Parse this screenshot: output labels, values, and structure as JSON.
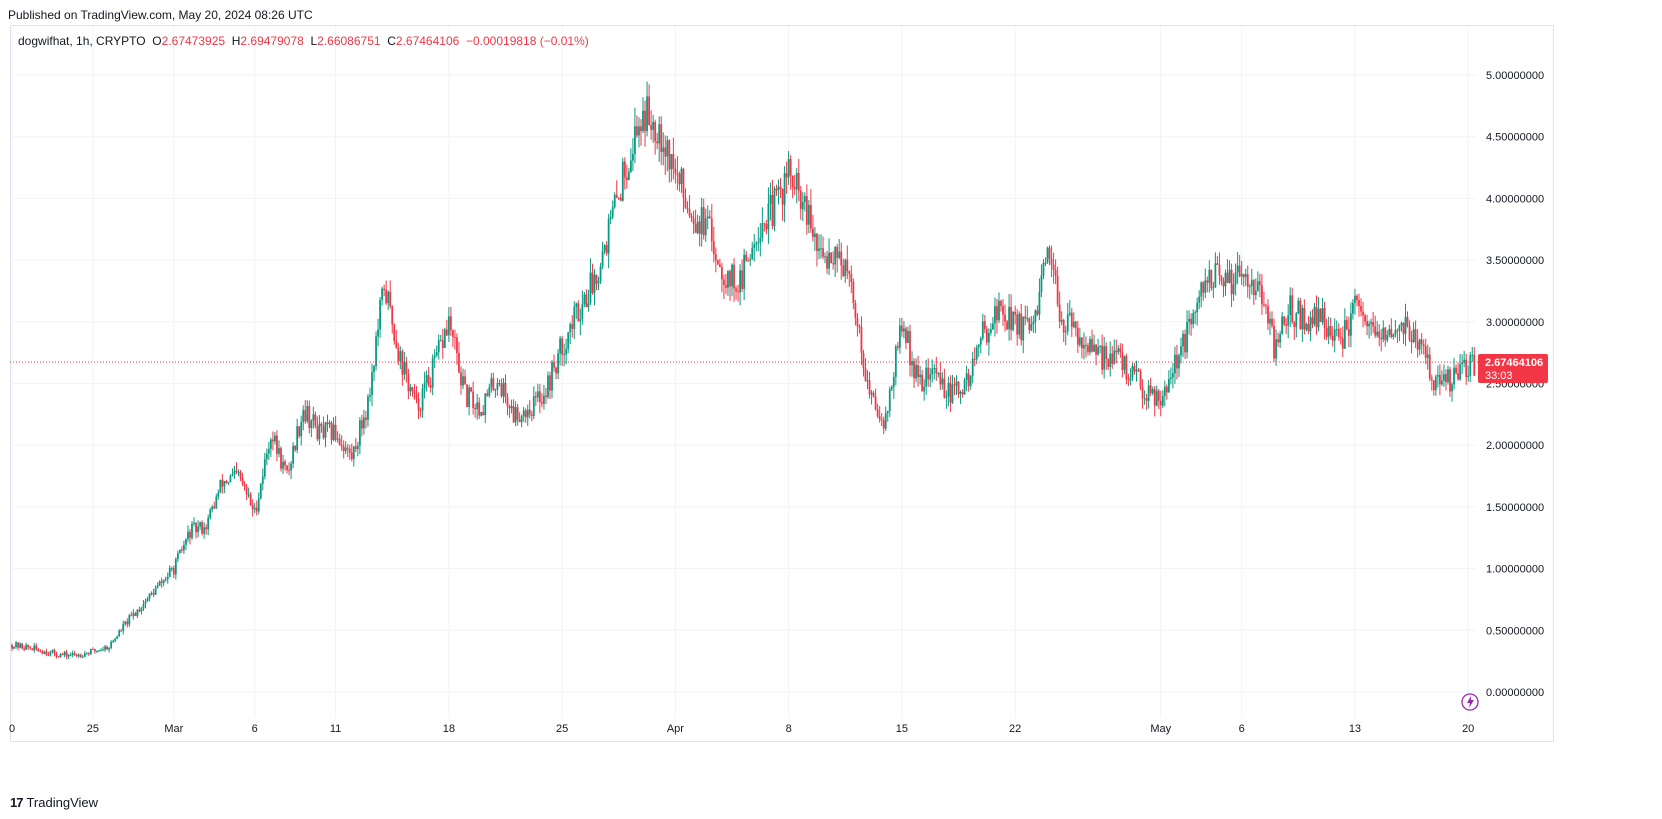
{
  "caption": "Published on TradingView.com, May 20, 2024 08:26 UTC",
  "symbol": {
    "name": "dogwifhat, 1h, CRYPTO",
    "o_label": "O",
    "o_value": "2.67473925",
    "h_label": "H",
    "h_value": "2.69479078",
    "l_label": "L",
    "l_value": "2.66086751",
    "c_label": "C",
    "c_value": "2.67464106",
    "change": "−0.00019818 (−0.01%)"
  },
  "price_tag": {
    "value": "2.67464106",
    "countdown": "33:03"
  },
  "brand": {
    "logo": "17",
    "name": "TradingView"
  },
  "colors": {
    "up": "#089981",
    "down": "#f23645",
    "grid": "#f0f3fa",
    "axis_text": "#131722"
  },
  "chart_data": {
    "type": "candlestick",
    "title": "dogwifhat, 1h, CRYPTO",
    "xlabel": "",
    "ylabel": "",
    "ylim": [
      -0.05,
      5.3
    ],
    "x_tick_labels": [
      "0",
      "25",
      "Mar",
      "6",
      "11",
      "18",
      "25",
      "Apr",
      "8",
      "15",
      "22",
      "May",
      "6",
      "13",
      "20"
    ],
    "x_tick_days": [
      0,
      5,
      10,
      15,
      20,
      27,
      34,
      41,
      48,
      55,
      62,
      71,
      76,
      83,
      90
    ],
    "y_tick_labels": [
      "0.00000000",
      "0.50000000",
      "1.00000000",
      "1.50000000",
      "2.00000000",
      "2.50000000",
      "3.00000000",
      "3.50000000",
      "4.00000000",
      "4.50000000",
      "5.00000000"
    ],
    "y_tick_values": [
      0,
      0.5,
      1.0,
      1.5,
      2.0,
      2.5,
      3.0,
      3.5,
      4.0,
      4.5,
      5.0
    ],
    "last_price": 2.67464106,
    "close_path_days": [
      0,
      1,
      2,
      3,
      4,
      5,
      6,
      7,
      8,
      9,
      10,
      11,
      12,
      13,
      14,
      15,
      16,
      17,
      18,
      19,
      20,
      21,
      22,
      23,
      24,
      25,
      26,
      27,
      28,
      29,
      30,
      31,
      32,
      33,
      34,
      35,
      36,
      37,
      38,
      39,
      40,
      41,
      42,
      43,
      44,
      45,
      46,
      47,
      48,
      49,
      50,
      51,
      52,
      53,
      54,
      55,
      56,
      57,
      58,
      59,
      60,
      61,
      62,
      63,
      64,
      65,
      66,
      67,
      68,
      69,
      70,
      71,
      72,
      73,
      74,
      75,
      76,
      77,
      78,
      79,
      80,
      81,
      82,
      83,
      84,
      85,
      86,
      87,
      88,
      89,
      90.4
    ],
    "close_path_values": [
      0.38,
      0.36,
      0.33,
      0.3,
      0.3,
      0.33,
      0.37,
      0.55,
      0.7,
      0.85,
      1.0,
      1.3,
      1.35,
      1.7,
      1.75,
      1.45,
      2.1,
      1.75,
      2.3,
      2.1,
      2.1,
      1.9,
      2.35,
      3.3,
      2.7,
      2.3,
      2.6,
      3.0,
      2.4,
      2.3,
      2.55,
      2.25,
      2.3,
      2.45,
      2.8,
      3.1,
      3.35,
      3.8,
      4.3,
      4.7,
      4.6,
      4.2,
      3.9,
      3.75,
      3.4,
      3.3,
      3.75,
      3.9,
      4.2,
      3.9,
      3.5,
      3.6,
      3.2,
      2.4,
      2.2,
      3.0,
      2.5,
      2.6,
      2.4,
      2.5,
      2.9,
      3.1,
      3.0,
      2.9,
      3.5,
      3.0,
      2.9,
      2.7,
      2.75,
      2.6,
      2.45,
      2.4,
      2.7,
      3.0,
      3.4,
      3.3,
      3.45,
      3.3,
      2.8,
      3.1,
      3.0,
      3.05,
      2.8,
      3.1,
      2.9,
      2.85,
      3.0,
      2.8,
      2.5,
      2.52,
      2.67
    ]
  }
}
